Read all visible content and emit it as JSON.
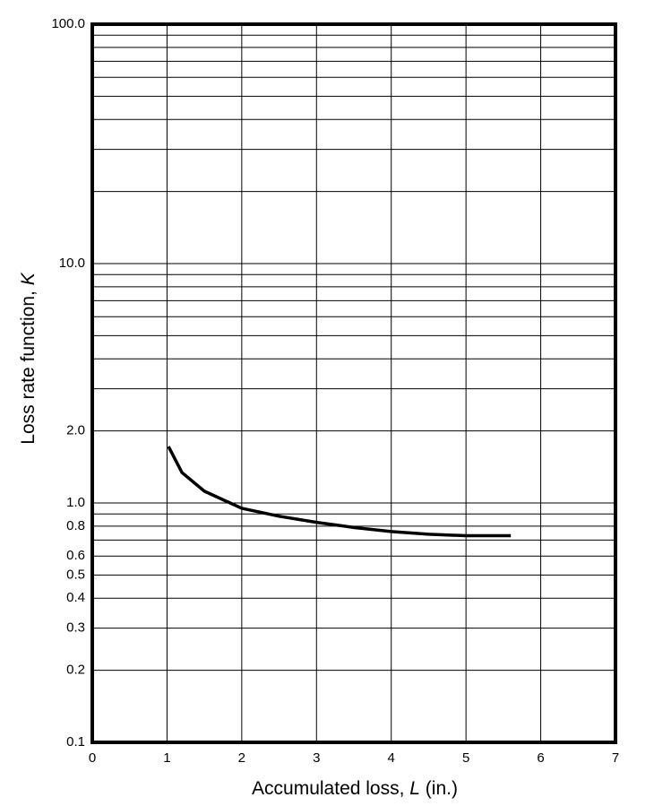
{
  "chart_data": {
    "type": "line",
    "x_label_parts": [
      "Accumulated loss, ",
      "L",
      " (in.)"
    ],
    "y_label_parts": [
      "Loss rate function, ",
      "K"
    ],
    "y_log": true,
    "grid": true,
    "xlim": [
      0,
      7
    ],
    "xticks": [
      0,
      1,
      2,
      3,
      4,
      5,
      6,
      7
    ],
    "ylim": [
      0.1,
      100
    ],
    "yticks": [
      0.1,
      0.2,
      0.3,
      0.4,
      0.5,
      0.6,
      0.8,
      {
        "value": 1,
        "label": "1.0"
      },
      {
        "value": 2,
        "label": "2.0"
      },
      {
        "value": 10,
        "label": "10.0"
      },
      {
        "value": 100,
        "label": "100.0"
      }
    ],
    "y_minor_grid": [
      0.7,
      0.9,
      3,
      4,
      5,
      6,
      7,
      8,
      9,
      20,
      30,
      40,
      50,
      60,
      70,
      80,
      90
    ],
    "series": [
      {
        "color": "#000000",
        "x": [
          1.02,
          1.2,
          1.5,
          2,
          2.5,
          3,
          3.5,
          4,
          4.5,
          5,
          5.6
        ],
        "values": [
          1.72,
          1.34,
          1.12,
          0.95,
          0.88,
          0.83,
          0.79,
          0.76,
          0.74,
          0.73,
          0.73
        ]
      }
    ]
  }
}
